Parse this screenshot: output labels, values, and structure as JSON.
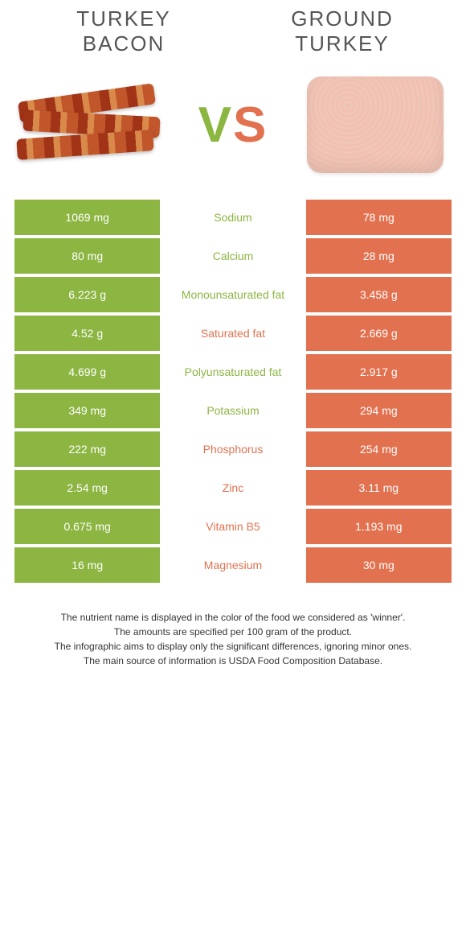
{
  "colors": {
    "left": "#8cb542",
    "right": "#e2714f",
    "text_dark": "#555555"
  },
  "header": {
    "left_title_line1": "TURKEY",
    "left_title_line2": "BACON",
    "right_title_line1": "GROUND",
    "right_title_line2": "TURKEY",
    "vs_v": "V",
    "vs_s": "S"
  },
  "nutrients": [
    {
      "name": "Sodium",
      "left": "1069 mg",
      "right": "78 mg",
      "winner": "left"
    },
    {
      "name": "Calcium",
      "left": "80 mg",
      "right": "28 mg",
      "winner": "left"
    },
    {
      "name": "Monounsaturated fat",
      "left": "6.223 g",
      "right": "3.458 g",
      "winner": "left"
    },
    {
      "name": "Saturated fat",
      "left": "4.52 g",
      "right": "2.669 g",
      "winner": "right"
    },
    {
      "name": "Polyunsaturated fat",
      "left": "4.699 g",
      "right": "2.917 g",
      "winner": "left"
    },
    {
      "name": "Potassium",
      "left": "349 mg",
      "right": "294 mg",
      "winner": "left"
    },
    {
      "name": "Phosphorus",
      "left": "222 mg",
      "right": "254 mg",
      "winner": "right"
    },
    {
      "name": "Zinc",
      "left": "2.54 mg",
      "right": "3.11 mg",
      "winner": "right"
    },
    {
      "name": "Vitamin B5",
      "left": "0.675 mg",
      "right": "1.193 mg",
      "winner": "right"
    },
    {
      "name": "Magnesium",
      "left": "16 mg",
      "right": "30 mg",
      "winner": "right"
    }
  ],
  "footnotes": [
    "The nutrient name is displayed in the color of the food we considered as 'winner'.",
    "The amounts are specified per 100 gram of the product.",
    "The infographic aims to display only the significant differences, ignoring minor ones.",
    "The main source of information is USDA Food Composition Database."
  ]
}
